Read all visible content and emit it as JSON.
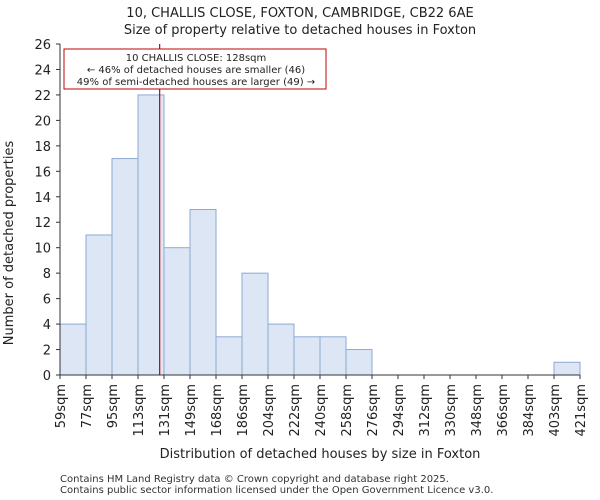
{
  "chart_data": {
    "type": "bar",
    "title_line1": "10, CHALLIS CLOSE, FOXTON, CAMBRIDGE, CB22 6AE",
    "title_line2": "Size of property relative to detached houses in Foxton",
    "xlabel": "Distribution of detached houses by size in Foxton",
    "ylabel": "Number of detached properties",
    "bin_edges": [
      59,
      77,
      95,
      113,
      131,
      149,
      168,
      186,
      204,
      222,
      240,
      258,
      276,
      294,
      312,
      330,
      348,
      366,
      384,
      403,
      421
    ],
    "tick_labels": [
      "59sqm",
      "77sqm",
      "95sqm",
      "113sqm",
      "131sqm",
      "149sqm",
      "168sqm",
      "186sqm",
      "204sqm",
      "222sqm",
      "240sqm",
      "258sqm",
      "276sqm",
      "294sqm",
      "312sqm",
      "330sqm",
      "348sqm",
      "366sqm",
      "384sqm",
      "403sqm",
      "421sqm"
    ],
    "values": [
      4,
      11,
      17,
      22,
      10,
      13,
      3,
      8,
      4,
      3,
      3,
      2,
      0,
      0,
      0,
      0,
      0,
      0,
      0,
      1
    ],
    "ylim": [
      0,
      26
    ],
    "yticks": [
      0,
      2,
      4,
      6,
      8,
      10,
      12,
      14,
      16,
      18,
      20,
      22,
      24,
      26
    ],
    "grid": false,
    "bar_color": "#dce6f5",
    "bar_edge_color": "#8da9d4",
    "marker": {
      "value": 128,
      "color": "#c00000",
      "label_line1": "10 CHALLIS CLOSE: 128sqm",
      "label_line2": "← 46% of detached houses are smaller (46)",
      "label_line3": "49% of semi-detached houses are larger (49) →"
    },
    "footer_line1": "Contains HM Land Registry data © Crown copyright and database right 2025.",
    "footer_line2": "Contains public sector information licensed under the Open Government Licence v3.0."
  }
}
